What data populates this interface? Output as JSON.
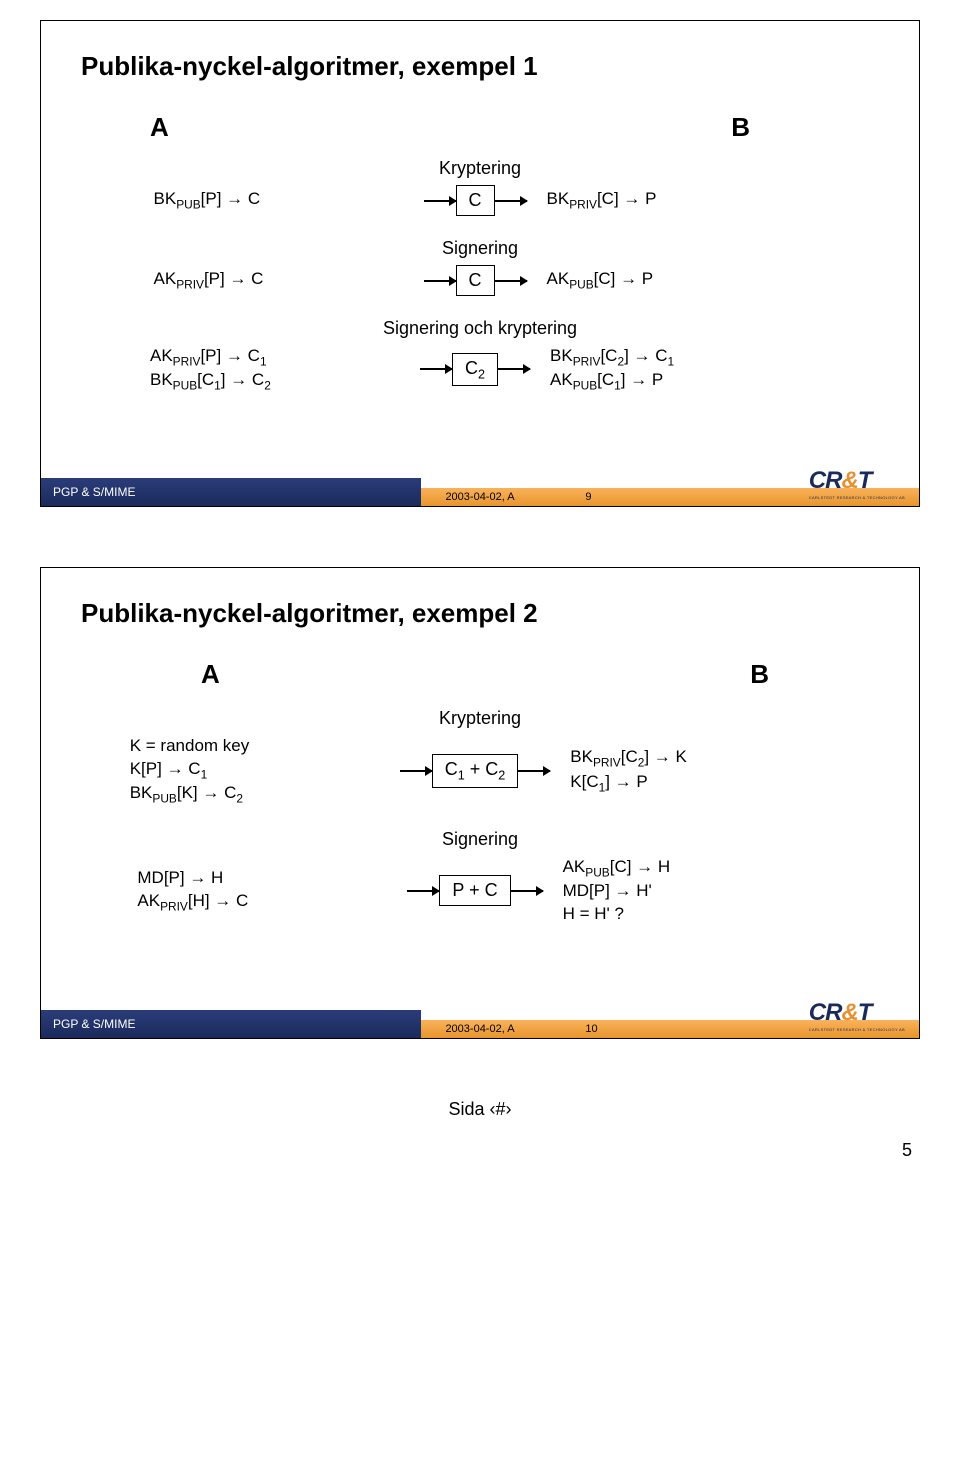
{
  "slide1": {
    "title": "Publika-nyckel-algoritmer, exempel 1",
    "colA": "A",
    "colB": "B",
    "sec1": {
      "label": "Kryptering",
      "left": "BK<sub>PUB</sub>[P] → C",
      "box": "C",
      "right": "BK<sub>PRIV</sub>[C] → P"
    },
    "sec2": {
      "label": "Signering",
      "left": "AK<sub>PRIV</sub>[P] → C",
      "box": "C",
      "right": "AK<sub>PUB</sub>[C] → P"
    },
    "sec3": {
      "label": "Signering och kryptering",
      "leftLine1": "AK<sub>PRIV</sub>[P] → C<sub>1</sub>",
      "leftLine2": "BK<sub>PUB</sub>[C<sub>1</sub>] → C<sub>2</sub>",
      "box": "C<sub>2</sub>",
      "rightLine1": "BK<sub>PRIV</sub>[C<sub>2</sub>] → C<sub>1</sub>",
      "rightLine2": "AK<sub>PUB</sub>[C<sub>1</sub>] → P"
    },
    "footer": {
      "app": "PGP & S/MIME",
      "date": "2003-04-02, A",
      "num": "9"
    }
  },
  "slide2": {
    "title": "Publika-nyckel-algoritmer, exempel 2",
    "colA": "A",
    "colB": "B",
    "sec1": {
      "label": "Kryptering",
      "leftLine1": "K = random key",
      "leftLine2": "K[P] → C<sub>1</sub>",
      "leftLine3": "BK<sub>PUB</sub>[K] → C<sub>2</sub>",
      "box": "C<sub>1</sub> + C<sub>2</sub>",
      "rightLine1": "BK<sub>PRIV</sub>[C<sub>2</sub>] → K",
      "rightLine2": "K[C<sub>1</sub>] → P"
    },
    "sec2": {
      "label": "Signering",
      "leftLine1": "MD[P] → H",
      "leftLine2": "AK<sub>PRIV</sub>[H] → C",
      "box": "P + C",
      "rightLine1": "AK<sub>PUB</sub>[C] → H",
      "rightLine2": "MD[P] → H'",
      "rightLine3": "H = H' ?"
    },
    "footer": {
      "app": "PGP & S/MIME",
      "date": "2003-04-02, A",
      "num": "10"
    }
  },
  "pageFooter": "Sida ‹#›",
  "pageNum": "5",
  "logo": {
    "text1": "CR",
    "amp": "&",
    "text2": "T",
    "sub": "CARLSTEDT RESEARCH & TECHNOLOGY AB"
  }
}
